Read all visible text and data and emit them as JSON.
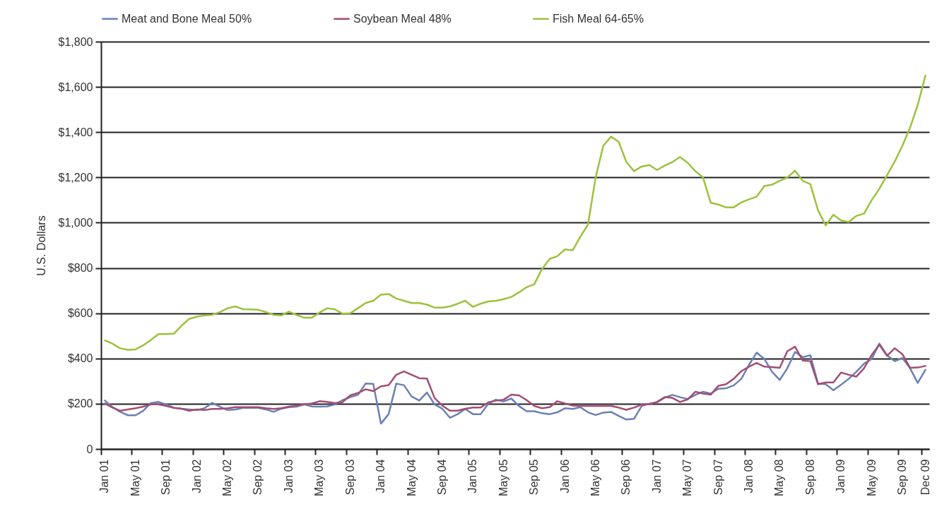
{
  "chart_data": {
    "type": "line",
    "ylabel": "U.S. Dollars",
    "grid": "y",
    "legend": "top",
    "line_style": "solid",
    "categories": [
      "Jan 01",
      null,
      null,
      null,
      "May 01",
      null,
      null,
      null,
      "Sep 01",
      null,
      null,
      null,
      "Jan 02",
      null,
      null,
      null,
      "May 02",
      null,
      null,
      null,
      "Sep 02",
      null,
      null,
      null,
      "Jan 03",
      null,
      null,
      null,
      "May 03",
      null,
      null,
      null,
      "Sep 03",
      null,
      null,
      null,
      "Jan 04",
      null,
      null,
      null,
      "May 04",
      null,
      null,
      null,
      "Sep 04",
      null,
      null,
      null,
      "Jan 05",
      null,
      null,
      null,
      "May 05",
      null,
      null,
      null,
      "Sep 05",
      null,
      null,
      null,
      "Jan 06",
      null,
      null,
      null,
      "May 06",
      null,
      null,
      null,
      "Sep 06",
      null,
      null,
      null,
      "Jan 07",
      null,
      null,
      null,
      "May 07",
      null,
      null,
      null,
      "Sep 07",
      null,
      null,
      null,
      "Jan 08",
      null,
      null,
      null,
      "May 08",
      null,
      null,
      null,
      "Sep 08",
      null,
      null,
      null,
      "Jan 09",
      null,
      null,
      null,
      "May 09",
      null,
      null,
      null,
      "Sep 09",
      null,
      null,
      "Dec 09"
    ],
    "ylim": [
      0,
      1800
    ],
    "yticks": [
      {
        "value": 0,
        "label": "0"
      },
      {
        "value": 200,
        "label": "$200"
      },
      {
        "value": 400,
        "label": "$400"
      },
      {
        "value": 600,
        "label": "$600"
      },
      {
        "value": 800,
        "label": "$800"
      },
      {
        "value": 1000,
        "label": "$1,000"
      },
      {
        "value": 1200,
        "label": "$1,200"
      },
      {
        "value": 1400,
        "label": "$1,400"
      },
      {
        "value": 1600,
        "label": "$1,600"
      },
      {
        "value": 1800,
        "label": "$1,800"
      }
    ],
    "series": [
      {
        "name": "Meat and Bone Meal 50%",
        "color": "#6b80b5",
        "values": [
          214,
          185,
          164,
          149,
          149,
          169,
          203,
          208,
          197,
          182,
          178,
          175,
          172,
          180,
          204,
          187,
          172,
          175,
          182,
          182,
          182,
          175,
          164,
          178,
          185,
          187,
          197,
          188,
          187,
          188,
          197,
          216,
          229,
          239,
          289,
          288,
          112,
          154,
          289,
          282,
          232,
          214,
          250,
          197,
          178,
          138,
          154,
          177,
          154,
          154,
          200,
          218,
          210,
          223,
          190,
          167,
          167,
          158,
          154,
          162,
          180,
          177,
          185,
          162,
          150,
          161,
          164,
          146,
          130,
          133,
          190,
          200,
          206,
          227,
          239,
          229,
          221,
          239,
          253,
          245,
          266,
          268,
          281,
          310,
          372,
          426,
          398,
          341,
          305,
          357,
          429,
          406,
          414,
          289,
          286,
          260,
          284,
          310,
          341,
          377,
          398,
          466,
          414,
          388,
          402,
          357,
          292,
          350
        ]
      },
      {
        "name": "Soybean Meal 48%",
        "color": "#a24d74",
        "values": [
          201,
          183,
          169,
          175,
          180,
          187,
          197,
          197,
          190,
          182,
          178,
          169,
          175,
          172,
          177,
          177,
          180,
          185,
          185,
          185,
          185,
          180,
          177,
          180,
          187,
          192,
          197,
          201,
          211,
          208,
          203,
          207,
          237,
          247,
          264,
          256,
          277,
          282,
          328,
          343,
          328,
          313,
          311,
          225,
          192,
          169,
          169,
          178,
          183,
          183,
          206,
          214,
          218,
          240,
          237,
          216,
          190,
          180,
          185,
          211,
          201,
          192,
          190,
          190,
          190,
          190,
          190,
          183,
          173,
          183,
          196,
          198,
          208,
          229,
          226,
          208,
          219,
          253,
          245,
          240,
          279,
          286,
          310,
          344,
          364,
          380,
          364,
          362,
          359,
          432,
          452,
          391,
          388,
          286,
          294,
          294,
          338,
          328,
          320,
          357,
          416,
          461,
          412,
          445,
          419,
          359,
          360,
          367
        ]
      },
      {
        "name": "Fish Meal 64-65%",
        "color": "#9bc23c",
        "values": [
          480,
          465,
          445,
          438,
          440,
          458,
          482,
          508,
          508,
          510,
          545,
          575,
          585,
          590,
          593,
          605,
          622,
          630,
          618,
          617,
          615,
          605,
          593,
          590,
          607,
          592,
          580,
          580,
          603,
          622,
          617,
          598,
          600,
          622,
          645,
          655,
          682,
          685,
          665,
          655,
          645,
          645,
          638,
          625,
          625,
          630,
          642,
          655,
          628,
          642,
          652,
          655,
          662,
          672,
          692,
          715,
          728,
          795,
          840,
          852,
          882,
          878,
          938,
          992,
          1200,
          1340,
          1380,
          1358,
          1268,
          1228,
          1248,
          1255,
          1233,
          1252,
          1268,
          1290,
          1265,
          1228,
          1200,
          1088,
          1080,
          1068,
          1068,
          1090,
          1103,
          1115,
          1162,
          1168,
          1185,
          1200,
          1230,
          1185,
          1170,
          1055,
          988,
          1035,
          1010,
          1003,
          1030,
          1040,
          1100,
          1150,
          1210,
          1270,
          1340,
          1420,
          1520,
          1650
        ]
      }
    ]
  }
}
